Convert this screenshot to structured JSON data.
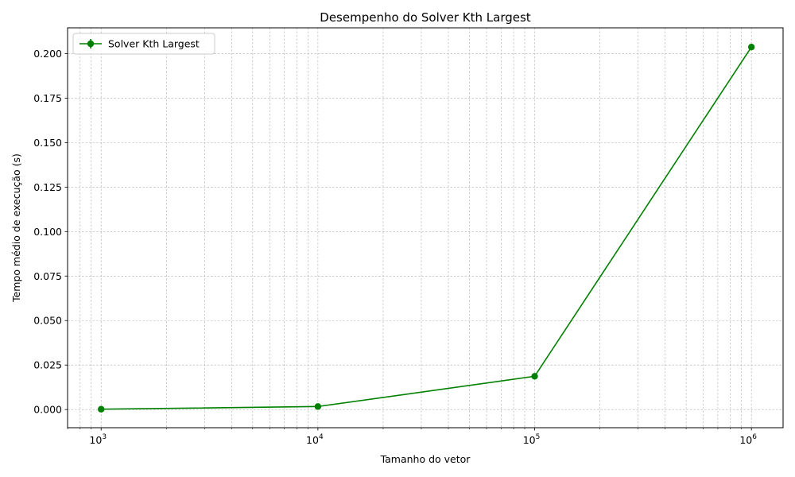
{
  "chart_data": {
    "type": "line",
    "title": "Desempenho do Solver Kth Largest",
    "xlabel": "Tamanho do vetor",
    "ylabel": "Tempo médio de execução (s)",
    "x_scale": "log",
    "x_base": "10",
    "xlim": [
      700,
      1400000
    ],
    "ylim": [
      -0.0102,
      0.2145
    ],
    "x_tick_values": [
      1000,
      10000,
      100000,
      1000000
    ],
    "x_tick_exponents": [
      "3",
      "4",
      "5",
      "6"
    ],
    "y_ticks": [
      "0.000",
      "0.025",
      "0.050",
      "0.075",
      "0.100",
      "0.125",
      "0.150",
      "0.175",
      "0.200"
    ],
    "grid": true,
    "legend_position": "top-left",
    "series": [
      {
        "name": "Solver Kth Largest",
        "color": "#008000",
        "marker": "circle",
        "x": [
          1000,
          10000,
          100000,
          1000000
        ],
        "y": [
          0.0002,
          0.0017,
          0.0187,
          0.2037
        ]
      }
    ]
  }
}
